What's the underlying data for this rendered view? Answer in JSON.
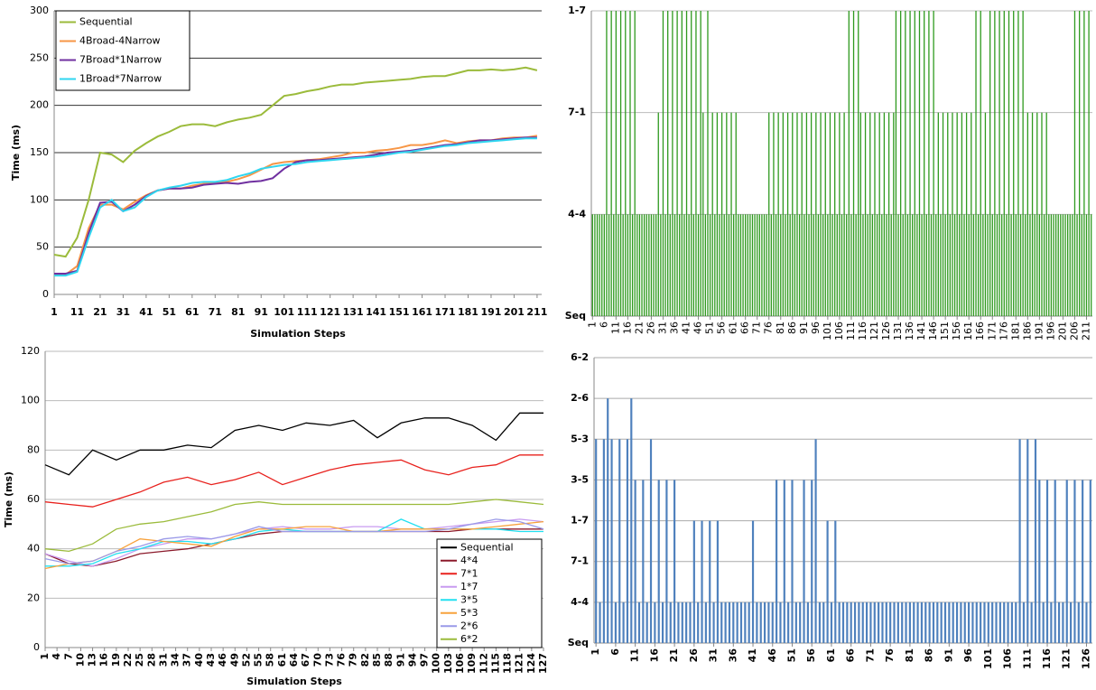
{
  "chart_data": [
    {
      "type": "line",
      "y_label": "Time (ms)",
      "x_label": "Simulation Steps",
      "legend": "upper left",
      "grid": true,
      "xlim": [
        1,
        213
      ],
      "xticks": [
        1,
        11,
        21,
        31,
        41,
        51,
        61,
        71,
        81,
        91,
        101,
        111,
        121,
        131,
        141,
        151,
        161,
        171,
        181,
        191,
        201,
        211
      ],
      "ylim": [
        0,
        300
      ],
      "yticks": [
        0,
        50,
        100,
        150,
        200,
        250,
        300
      ],
      "x": [
        1,
        6,
        11,
        16,
        21,
        26,
        31,
        36,
        41,
        46,
        51,
        56,
        61,
        66,
        71,
        76,
        81,
        86,
        91,
        96,
        101,
        106,
        111,
        116,
        121,
        126,
        131,
        136,
        141,
        146,
        151,
        156,
        161,
        166,
        171,
        176,
        181,
        186,
        191,
        196,
        201,
        206,
        211
      ],
      "series": [
        {
          "name": "Sequential",
          "color": "#9bbb3b",
          "values": [
            42,
            40,
            60,
            100,
            150,
            148,
            140,
            152,
            160,
            167,
            172,
            178,
            180,
            180,
            178,
            182,
            185,
            187,
            190,
            200,
            210,
            212,
            215,
            217,
            220,
            222,
            222,
            224,
            225,
            226,
            227,
            228,
            230,
            231,
            231,
            234,
            237,
            237,
            238,
            237,
            238,
            240,
            237
          ]
        },
        {
          "name": "4Broad-4Narrow",
          "color": "#f79646",
          "values": [
            20,
            21,
            30,
            70,
            95,
            95,
            90,
            98,
            105,
            110,
            112,
            112,
            115,
            117,
            118,
            119,
            122,
            126,
            132,
            138,
            140,
            141,
            142,
            143,
            145,
            147,
            150,
            150,
            152,
            153,
            155,
            158,
            158,
            160,
            163,
            160,
            162,
            163,
            163,
            165,
            166,
            166,
            168
          ]
        },
        {
          "name": "7Broad*1Narrow",
          "color": "#7030a0",
          "values": [
            22,
            22,
            25,
            65,
            97,
            98,
            88,
            95,
            104,
            110,
            112,
            112,
            113,
            116,
            117,
            118,
            117,
            119,
            120,
            123,
            133,
            140,
            142,
            142,
            143,
            144,
            145,
            146,
            148,
            150,
            151,
            152,
            154,
            156,
            158,
            159,
            161,
            163,
            163,
            164,
            165,
            166,
            166
          ]
        },
        {
          "name": "1Broad*7Narrow",
          "color": "#2fd6f0",
          "values": [
            20,
            20,
            24,
            60,
            92,
            100,
            88,
            92,
            103,
            110,
            113,
            115,
            118,
            119,
            119,
            121,
            125,
            128,
            133,
            135,
            137,
            138,
            140,
            141,
            142,
            143,
            144,
            145,
            146,
            148,
            150,
            151,
            153,
            155,
            157,
            158,
            160,
            161,
            162,
            163,
            164,
            165,
            165
          ]
        }
      ]
    },
    {
      "type": "bar",
      "color": "#2f9a1f",
      "grid": true,
      "xlim": [
        1,
        213
      ],
      "xticks": [
        1,
        6,
        11,
        16,
        21,
        26,
        31,
        36,
        41,
        46,
        51,
        56,
        61,
        66,
        71,
        76,
        81,
        86,
        91,
        96,
        101,
        106,
        111,
        116,
        121,
        126,
        131,
        136,
        141,
        146,
        151,
        156,
        161,
        166,
        171,
        176,
        181,
        186,
        191,
        196,
        201,
        206,
        211
      ],
      "ylim": [
        0,
        3
      ],
      "yticks": [
        {
          "value": 0,
          "label": "Seq"
        },
        {
          "value": 1,
          "label": "4-4"
        },
        {
          "value": 2,
          "label": "7-1"
        },
        {
          "value": 3,
          "label": "1-7"
        }
      ],
      "x": [
        1,
        2,
        3,
        4,
        5,
        6,
        7,
        8,
        9,
        10,
        11,
        12,
        13,
        14,
        15,
        16,
        17,
        18,
        19,
        20,
        21,
        22,
        23,
        24,
        25,
        26,
        27,
        28,
        29,
        30,
        31,
        32,
        33,
        34,
        35,
        36,
        37,
        38,
        39,
        40,
        41,
        42,
        43,
        44,
        45,
        46,
        47,
        48,
        49,
        50,
        51,
        52,
        53,
        54,
        55,
        56,
        57,
        58,
        59,
        60,
        61,
        62,
        63,
        64,
        65,
        66,
        67,
        68,
        69,
        70,
        71,
        72,
        73,
        74,
        75,
        76,
        77,
        78,
        79,
        80,
        81,
        82,
        83,
        84,
        85,
        86,
        87,
        88,
        89,
        90,
        91,
        92,
        93,
        94,
        95,
        96,
        97,
        98,
        99,
        100,
        101,
        102,
        103,
        104,
        105,
        106,
        107,
        108,
        109,
        110,
        111,
        112,
        113,
        114,
        115,
        116,
        117,
        118,
        119,
        120,
        121,
        122,
        123,
        124,
        125,
        126,
        127,
        128,
        129,
        130,
        131,
        132,
        133,
        134,
        135,
        136,
        137,
        138,
        139,
        140,
        141,
        142,
        143,
        144,
        145,
        146,
        147,
        148,
        149,
        150,
        151,
        152,
        153,
        154,
        155,
        156,
        157,
        158,
        159,
        160,
        161,
        162,
        163,
        164,
        165,
        166,
        167,
        168,
        169,
        170,
        171,
        172,
        173,
        174,
        175,
        176,
        177,
        178,
        179,
        180,
        181,
        182,
        183,
        184,
        185,
        186,
        187,
        188,
        189,
        190,
        191,
        192,
        193,
        194,
        195,
        196,
        197,
        198,
        199,
        200,
        201,
        202,
        203,
        204,
        205,
        206,
        207,
        208,
        209,
        210,
        211,
        212,
        213
      ],
      "values": [
        1,
        1,
        1,
        1,
        1,
        1,
        3,
        1,
        3,
        1,
        3,
        1,
        3,
        1,
        3,
        1,
        3,
        1,
        3,
        1,
        1,
        1,
        1,
        1,
        1,
        1,
        1,
        1,
        2,
        1,
        3,
        1,
        3,
        1,
        3,
        1,
        3,
        1,
        3,
        1,
        3,
        1,
        3,
        1,
        3,
        1,
        3,
        2,
        1,
        3,
        1,
        2,
        1,
        2,
        1,
        2,
        1,
        2,
        1,
        2,
        1,
        2,
        1,
        1,
        1,
        1,
        1,
        1,
        1,
        1,
        1,
        1,
        1,
        1,
        1,
        2,
        1,
        2,
        1,
        2,
        1,
        2,
        1,
        2,
        1,
        2,
        1,
        2,
        1,
        2,
        1,
        2,
        1,
        2,
        1,
        2,
        1,
        2,
        1,
        2,
        1,
        2,
        1,
        2,
        1,
        2,
        1,
        2,
        1,
        3,
        1,
        3,
        1,
        3,
        2,
        1,
        2,
        1,
        2,
        1,
        2,
        1,
        2,
        1,
        2,
        1,
        2,
        1,
        2,
        3,
        1,
        3,
        1,
        3,
        1,
        3,
        1,
        3,
        1,
        3,
        1,
        3,
        1,
        3,
        1,
        3,
        1,
        2,
        1,
        2,
        1,
        2,
        1,
        2,
        1,
        2,
        1,
        2,
        1,
        2,
        1,
        2,
        1,
        3,
        1,
        3,
        1,
        2,
        1,
        3,
        1,
        3,
        1,
        3,
        1,
        3,
        1,
        3,
        1,
        3,
        1,
        3,
        1,
        3,
        1,
        2,
        1,
        2,
        1,
        2,
        1,
        2,
        1,
        2,
        1,
        1,
        1,
        1,
        1,
        1,
        1,
        1,
        1,
        1,
        1,
        3,
        1,
        3,
        1,
        3,
        1,
        3,
        1
      ]
    },
    {
      "type": "line",
      "y_label": "Time (ms)",
      "x_label": "Simulation Steps",
      "legend": "lower right",
      "grid": true,
      "xlim": [
        1,
        127
      ],
      "xticks": [
        1,
        4,
        7,
        10,
        13,
        16,
        19,
        22,
        25,
        28,
        31,
        34,
        37,
        40,
        43,
        46,
        49,
        52,
        55,
        58,
        61,
        64,
        67,
        70,
        73,
        76,
        79,
        82,
        85,
        88,
        91,
        94,
        97,
        100,
        103,
        106,
        109,
        112,
        115,
        118,
        121,
        124,
        127
      ],
      "ylim": [
        0,
        120
      ],
      "yticks": [
        0,
        20,
        40,
        60,
        80,
        100,
        120
      ],
      "x": [
        1,
        7,
        13,
        19,
        25,
        31,
        37,
        43,
        49,
        55,
        61,
        67,
        73,
        79,
        85,
        91,
        97,
        103,
        109,
        115,
        121,
        127
      ],
      "series": [
        {
          "name": "Sequential",
          "color": "#000000",
          "values": [
            74,
            70,
            80,
            76,
            80,
            80,
            82,
            81,
            88,
            90,
            88,
            91,
            90,
            92,
            85,
            91,
            93,
            93,
            90,
            84,
            95,
            95
          ]
        },
        {
          "name": "4*4",
          "color": "#8b1a2b",
          "values": [
            38,
            34,
            33,
            35,
            38,
            39,
            40,
            42,
            44,
            46,
            47,
            47,
            47,
            47,
            47,
            47,
            47,
            47,
            48,
            48,
            48,
            48
          ]
        },
        {
          "name": "7*1",
          "color": "#e8211d",
          "values": [
            59,
            58,
            57,
            60,
            63,
            67,
            69,
            66,
            68,
            71,
            66,
            69,
            72,
            74,
            75,
            76,
            72,
            70,
            73,
            74,
            78,
            78
          ]
        },
        {
          "name": "1*7",
          "color": "#c89bf0",
          "values": [
            38,
            35,
            33,
            36,
            40,
            42,
            44,
            44,
            46,
            48,
            49,
            48,
            48,
            49,
            49,
            48,
            48,
            49,
            50,
            51,
            52,
            51
          ]
        },
        {
          "name": "3*5",
          "color": "#22e0f0",
          "values": [
            33,
            33,
            34,
            38,
            40,
            43,
            43,
            42,
            44,
            47,
            48,
            47,
            47,
            47,
            47,
            52,
            48,
            48,
            48,
            48,
            47,
            47
          ]
        },
        {
          "name": "5*3",
          "color": "#f7a23c",
          "values": [
            32,
            34,
            35,
            39,
            44,
            43,
            42,
            41,
            45,
            48,
            48,
            49,
            49,
            47,
            47,
            48,
            48,
            48,
            48,
            49,
            50,
            51
          ]
        },
        {
          "name": "2*6",
          "color": "#9a9ae8",
          "values": [
            36,
            34,
            35,
            39,
            41,
            44,
            45,
            44,
            46,
            49,
            47,
            47,
            47,
            47,
            47,
            47,
            47,
            48,
            50,
            52,
            51,
            48
          ]
        },
        {
          "name": "6*2",
          "color": "#9bbb3b",
          "values": [
            40,
            39,
            42,
            48,
            50,
            51,
            53,
            55,
            58,
            59,
            58,
            58,
            58,
            58,
            58,
            58,
            58,
            58,
            59,
            60,
            59,
            58
          ]
        }
      ]
    },
    {
      "type": "bar",
      "color": "#4f81bd",
      "grid": true,
      "xlim": [
        1,
        127
      ],
      "xticks": [
        1,
        6,
        11,
        16,
        21,
        26,
        31,
        36,
        41,
        46,
        51,
        56,
        61,
        66,
        71,
        76,
        81,
        86,
        91,
        96,
        101,
        106,
        111,
        116,
        121,
        126
      ],
      "ylim": [
        0,
        7
      ],
      "yticks": [
        {
          "value": 0,
          "label": "Seq"
        },
        {
          "value": 1,
          "label": "4-4"
        },
        {
          "value": 2,
          "label": "7-1"
        },
        {
          "value": 3,
          "label": "1-7"
        },
        {
          "value": 4,
          "label": "3-5"
        },
        {
          "value": 5,
          "label": "5-3"
        },
        {
          "value": 6,
          "label": "2-6"
        },
        {
          "value": 7,
          "label": "6-2"
        }
      ],
      "x": [
        1,
        2,
        3,
        4,
        5,
        6,
        7,
        8,
        9,
        10,
        11,
        12,
        13,
        14,
        15,
        16,
        17,
        18,
        19,
        20,
        21,
        22,
        23,
        24,
        25,
        26,
        27,
        28,
        29,
        30,
        31,
        32,
        33,
        34,
        35,
        36,
        37,
        38,
        39,
        40,
        41,
        42,
        43,
        44,
        45,
        46,
        47,
        48,
        49,
        50,
        51,
        52,
        53,
        54,
        55,
        56,
        57,
        58,
        59,
        60,
        61,
        62,
        63,
        64,
        65,
        66,
        67,
        68,
        69,
        70,
        71,
        72,
        73,
        74,
        75,
        76,
        77,
        78,
        79,
        80,
        81,
        82,
        83,
        84,
        85,
        86,
        87,
        88,
        89,
        90,
        91,
        92,
        93,
        94,
        95,
        96,
        97,
        98,
        99,
        100,
        101,
        102,
        103,
        104,
        105,
        106,
        107,
        108,
        109,
        110,
        111,
        112,
        113,
        114,
        115,
        116,
        117,
        118,
        119,
        120,
        121,
        122,
        123,
        124,
        125,
        126,
        127
      ],
      "values": [
        5,
        1,
        5,
        6,
        5,
        1,
        5,
        1,
        5,
        6,
        4,
        1,
        4,
        1,
        5,
        1,
        4,
        1,
        4,
        1,
        4,
        1,
        1,
        1,
        1,
        3,
        1,
        3,
        1,
        3,
        1,
        3,
        1,
        1,
        1,
        1,
        1,
        1,
        1,
        1,
        3,
        1,
        1,
        1,
        1,
        1,
        4,
        1,
        4,
        1,
        4,
        1,
        1,
        4,
        1,
        4,
        5,
        1,
        1,
        3,
        1,
        3,
        1,
        1,
        1,
        1,
        1,
        1,
        1,
        1,
        1,
        1,
        1,
        1,
        1,
        1,
        1,
        1,
        1,
        1,
        1,
        1,
        1,
        1,
        1,
        1,
        1,
        1,
        1,
        1,
        1,
        1,
        1,
        1,
        1,
        1,
        1,
        1,
        1,
        1,
        1,
        1,
        1,
        1,
        1,
        1,
        1,
        1,
        5,
        1,
        5,
        1,
        5,
        4,
        1,
        4,
        1,
        4,
        1,
        1,
        4,
        1,
        4,
        1,
        4,
        1,
        4
      ]
    }
  ]
}
